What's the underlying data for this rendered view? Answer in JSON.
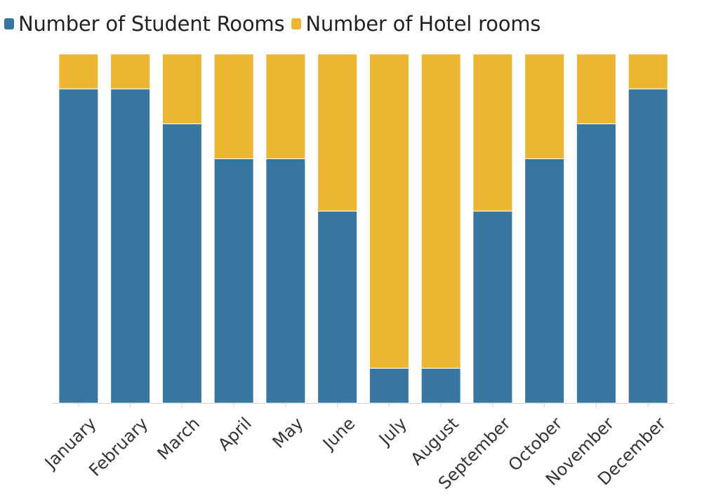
{
  "chart_data": {
    "type": "bar",
    "stacked": true,
    "categories": [
      "January",
      "February",
      "March",
      "April",
      "May",
      "June",
      "July",
      "August",
      "September",
      "October",
      "November",
      "December"
    ],
    "series": [
      {
        "name": "Number of Student Rooms",
        "color": "#3776a1",
        "values": [
          90,
          90,
          80,
          70,
          70,
          55,
          10,
          10,
          55,
          70,
          80,
          90
        ]
      },
      {
        "name": "Number of Hotel rooms",
        "color": "#edb632",
        "values": [
          10,
          10,
          20,
          30,
          30,
          45,
          90,
          90,
          45,
          30,
          20,
          10
        ]
      }
    ],
    "xlabel": "",
    "ylabel": "",
    "ylim": [
      0,
      100
    ],
    "grid": false,
    "legend_position": "top-left",
    "y_axis_visible": false
  }
}
